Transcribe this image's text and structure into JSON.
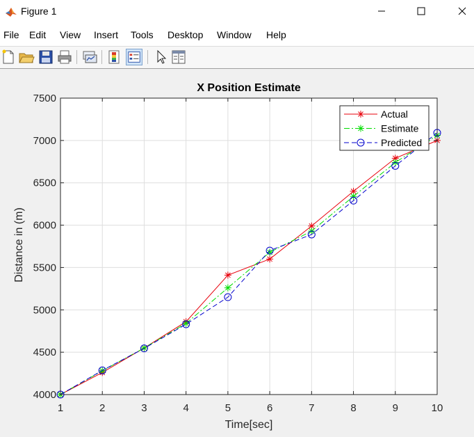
{
  "window": {
    "title": "Figure 1"
  },
  "menu": [
    "File",
    "Edit",
    "View",
    "Insert",
    "Tools",
    "Desktop",
    "Window",
    "Help"
  ],
  "toolbar": {
    "icons": [
      "new-figure-icon",
      "open-file-icon",
      "save-icon",
      "print-icon",
      "link-plot-icon",
      "insert-colorbar-icon",
      "insert-legend-icon",
      "edit-plot-arrow-icon",
      "property-inspector-icon"
    ]
  },
  "chart_data": {
    "type": "line",
    "title": "X Position Estimate",
    "xlabel": "Time[sec]",
    "ylabel": "Distance in (m)",
    "xlim": [
      1,
      10
    ],
    "ylim": [
      4000,
      7500
    ],
    "xticks": [
      1,
      2,
      3,
      4,
      5,
      6,
      7,
      8,
      9,
      10
    ],
    "yticks": [
      4000,
      4500,
      5000,
      5500,
      6000,
      6500,
      7000,
      7500
    ],
    "grid": true,
    "legend_position": "top-right",
    "x": [
      1,
      2,
      3,
      4,
      5,
      6,
      7,
      8,
      9,
      10
    ],
    "series": [
      {
        "name": "Actual",
        "color": "#e8000b",
        "marker": "star",
        "dash": "solid",
        "values": [
          4000,
          4260,
          4550,
          4860,
          5410,
          5600,
          5990,
          6400,
          6790,
          7000
        ]
      },
      {
        "name": "Estimate",
        "color": "#00dd00",
        "marker": "star",
        "dash": "dashdot",
        "values": [
          4000,
          4280,
          4550,
          4840,
          5260,
          5680,
          5930,
          6340,
          6740,
          7060
        ]
      },
      {
        "name": "Predicted",
        "color": "#0000cc",
        "marker": "circle",
        "dash": "dash",
        "values": [
          4000,
          4285,
          4545,
          4830,
          5150,
          5700,
          5890,
          6290,
          6700,
          7090
        ]
      }
    ]
  }
}
